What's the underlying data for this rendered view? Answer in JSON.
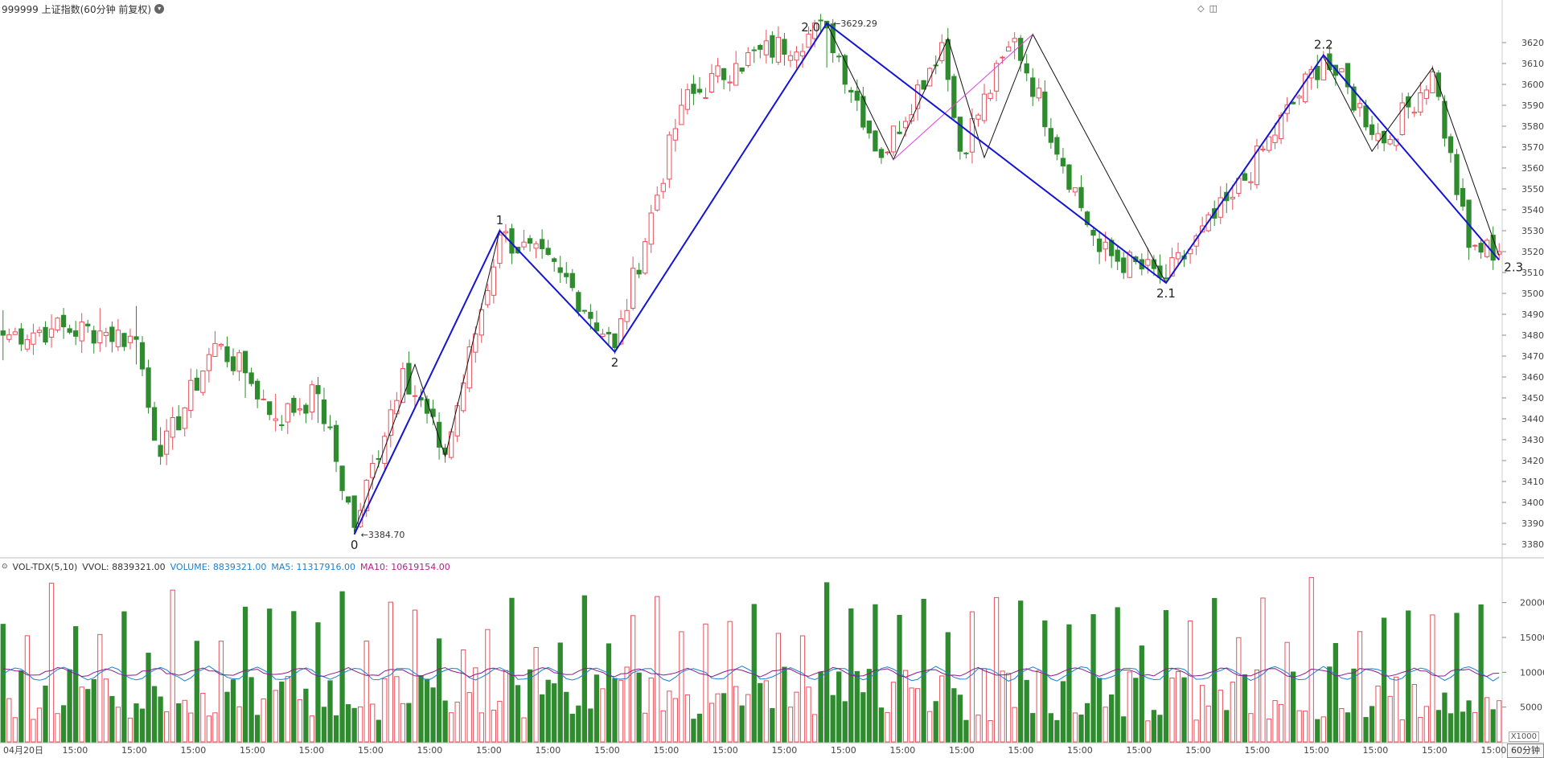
{
  "header": {
    "title": "999999 上证指数(60分钟 前复权)",
    "dropdown_icon": "chevron-down-icon"
  },
  "top_right_icons": [
    "diamond-icon",
    "panel-icon"
  ],
  "volume_header": {
    "indicator": "VOL-TDX(5,10)",
    "vvol": "VVOL: 8839321.00",
    "volume": "VOLUME: 8839321.00",
    "ma5": "MA5: 11317916.00",
    "ma10": "MA10: 10619154.00"
  },
  "period_label": "60分钟",
  "volume_unit": "X1000",
  "colors": {
    "up": "#e8505b",
    "down": "#2e8b2e",
    "wave": "#1414d4",
    "sub_wave": "#111111",
    "channel": "#e040e0",
    "ma5": "#1e7fd1",
    "ma10": "#8b1a8b",
    "grid": "#d8d8d8"
  },
  "chart_data": {
    "type": "candlestick",
    "price_axis": {
      "ylim": [
        3375,
        3635
      ],
      "ticks": [
        3380,
        3390,
        3400,
        3410,
        3420,
        3430,
        3440,
        3450,
        3460,
        3470,
        3480,
        3490,
        3500,
        3510,
        3520,
        3530,
        3540,
        3550,
        3560,
        3570,
        3580,
        3590,
        3600,
        3610,
        3620
      ]
    },
    "x_labels": [
      "04月20日",
      "15:00",
      "15:00",
      "15:00",
      "15:00",
      "15:00",
      "15:00",
      "15:00",
      "15:00",
      "15:00",
      "15:00",
      "15:00",
      "15:00",
      "15:00",
      "15:00",
      "15:00",
      "15:00",
      "15:00",
      "15:00",
      "15:00",
      "15:00",
      "15:00",
      "15:00",
      "15:00",
      "15:00",
      "15:00"
    ],
    "bar_count": 248,
    "key_points": [
      {
        "i": 0,
        "close": 3480,
        "hi": 3492,
        "lo": 3468
      },
      {
        "i": 8,
        "close": 3483,
        "hi": 3490,
        "lo": 3474
      },
      {
        "i": 16,
        "close": 3482,
        "hi": 3493,
        "lo": 3472
      },
      {
        "i": 22,
        "close": 3478,
        "hi": 3494,
        "lo": 3466
      },
      {
        "i": 26,
        "close": 3422,
        "hi": 3436,
        "lo": 3418
      },
      {
        "i": 35,
        "close": 3476,
        "hi": 3482,
        "lo": 3470
      },
      {
        "i": 40,
        "close": 3462,
        "hi": 3470,
        "lo": 3450
      },
      {
        "i": 45,
        "close": 3440,
        "hi": 3452,
        "lo": 3434
      },
      {
        "i": 52,
        "close": 3452,
        "hi": 3460,
        "lo": 3438
      },
      {
        "i": 58,
        "close": 3388,
        "hi": 3402,
        "lo": 3384.7
      },
      {
        "i": 66,
        "close": 3464,
        "hi": 3467,
        "lo": 3450
      },
      {
        "i": 73,
        "close": 3423,
        "hi": 3428,
        "lo": 3419
      },
      {
        "i": 82,
        "close": 3528,
        "hi": 3531,
        "lo": 3512
      },
      {
        "i": 92,
        "close": 3510,
        "hi": 3518,
        "lo": 3505
      },
      {
        "i": 101,
        "close": 3474,
        "hi": 3480,
        "lo": 3471
      },
      {
        "i": 112,
        "close": 3590,
        "hi": 3598,
        "lo": 3586
      },
      {
        "i": 121,
        "close": 3610,
        "hi": 3616,
        "lo": 3600
      },
      {
        "i": 136,
        "close": 3627,
        "hi": 3629.29,
        "lo": 3608
      },
      {
        "i": 145,
        "close": 3565,
        "hi": 3570,
        "lo": 3562
      },
      {
        "i": 155,
        "close": 3620,
        "hi": 3624,
        "lo": 3610
      },
      {
        "i": 158,
        "close": 3568,
        "hi": 3574,
        "lo": 3564
      },
      {
        "i": 167,
        "close": 3622,
        "hi": 3625,
        "lo": 3612
      },
      {
        "i": 181,
        "close": 3520,
        "hi": 3530,
        "lo": 3514
      },
      {
        "i": 192,
        "close": 3507,
        "hi": 3514,
        "lo": 3505
      },
      {
        "i": 203,
        "close": 3546,
        "hi": 3552,
        "lo": 3540
      },
      {
        "i": 218,
        "close": 3613,
        "hi": 3616,
        "lo": 3606
      },
      {
        "i": 228,
        "close": 3572,
        "hi": 3578,
        "lo": 3568
      },
      {
        "i": 236,
        "close": 3606,
        "hi": 3609,
        "lo": 3598
      },
      {
        "i": 242,
        "close": 3522,
        "hi": 3530,
        "lo": 3516
      },
      {
        "i": 247,
        "close": 3520,
        "hi": 3524,
        "lo": 3516
      }
    ],
    "wave_labels": [
      {
        "label": "0",
        "i": 58,
        "price": 3384.7,
        "pos": "below"
      },
      {
        "label": "1",
        "i": 82,
        "price": 3530,
        "pos": "above"
      },
      {
        "label": "2",
        "i": 101,
        "price": 3472,
        "pos": "below"
      },
      {
        "label": "2.0",
        "i": 136,
        "price": 3629.29,
        "pos": "above-left"
      },
      {
        "label": "2.1",
        "i": 192,
        "price": 3505,
        "pos": "below"
      },
      {
        "label": "2.2",
        "i": 218,
        "price": 3614,
        "pos": "above"
      },
      {
        "label": "2.3",
        "i": 247,
        "price": 3516,
        "pos": "below-right"
      }
    ],
    "price_annotations": [
      {
        "text": "3629.29",
        "i": 136,
        "price": 3629.29
      },
      {
        "text": "3384.70",
        "i": 58,
        "price": 3384.7
      }
    ],
    "main_wave": [
      [
        58,
        3384.7
      ],
      [
        82,
        3530
      ],
      [
        101,
        3472
      ],
      [
        136,
        3629.29
      ],
      [
        192,
        3505
      ],
      [
        218,
        3614
      ],
      [
        247,
        3516
      ]
    ],
    "sub_waves": [
      [
        [
          58,
          3386
        ],
        [
          68,
          3466
        ],
        [
          73,
          3422
        ],
        [
          82,
          3530
        ]
      ],
      [
        [
          136,
          3629
        ],
        [
          147,
          3564
        ],
        [
          156,
          3622
        ],
        [
          162,
          3565
        ],
        [
          170,
          3624
        ],
        [
          192,
          3505
        ]
      ],
      [
        [
          218,
          3613
        ],
        [
          226,
          3568
        ],
        [
          236,
          3608
        ],
        [
          247,
          3518
        ]
      ]
    ],
    "channel_line": [
      [
        147,
        3564
      ],
      [
        170,
        3624
      ]
    ],
    "volume": {
      "ylim": [
        0,
        24000
      ],
      "ticks": [
        5000,
        10000,
        15000,
        20000
      ],
      "unit": "X1000"
    }
  }
}
